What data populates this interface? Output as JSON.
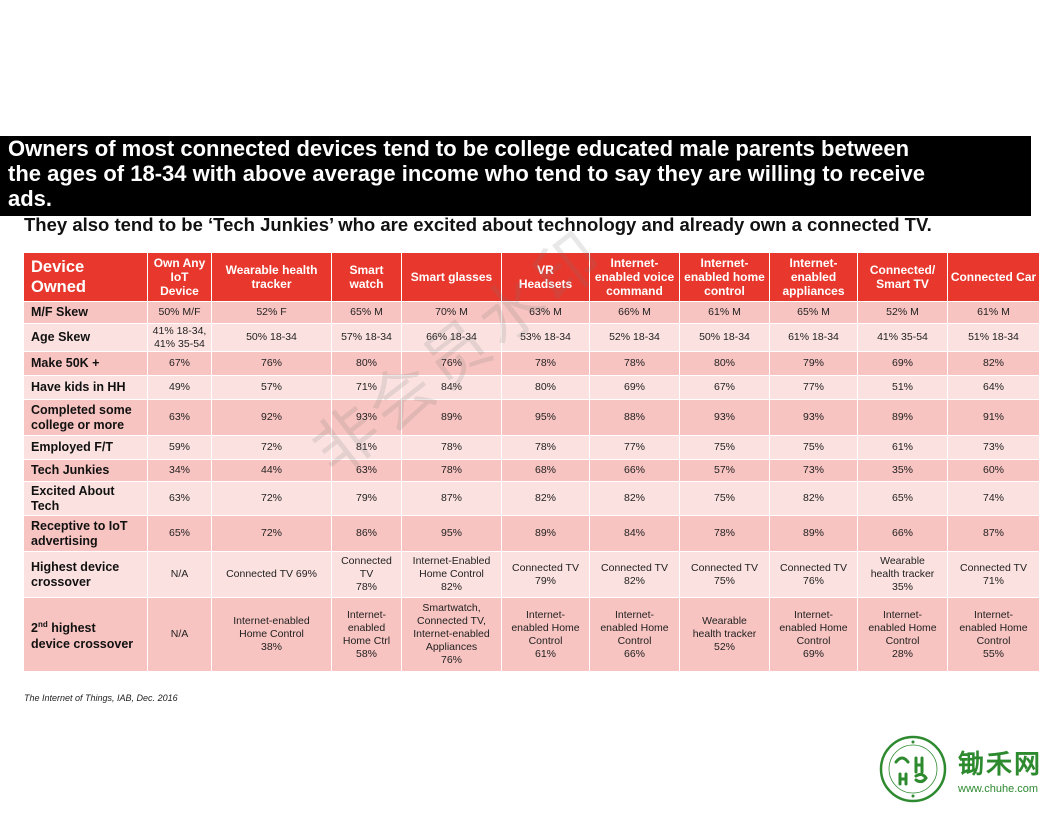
{
  "headline": "Owners  of most connected devices tend to be college educated male parents between\nthe ages of 18-34 with above average income who tend to say they are willing to receive\nads.",
  "subheadline": "They also tend to be ‘Tech Junkies’ who are excited about technology and already own a connected TV.",
  "table": {
    "corner": "Device\nOwned",
    "columns": [
      "Own Any\nIoT Device",
      "Wearable health\ntracker",
      "Smart\nwatch",
      "Smart glasses",
      "VR\nHeadsets",
      "Internet-\nenabled voice\ncommand",
      "Internet-\nenabled home\ncontrol",
      "Internet-\nenabled\nappliances",
      "Connected/\nSmart TV",
      "Connected Car"
    ],
    "rows": [
      {
        "label": "M/F Skew",
        "values": [
          "50% M/F",
          "52% F",
          "65% M",
          "70% M",
          "63% M",
          "66% M",
          "61% M",
          "65% M",
          "52% M",
          "61% M"
        ]
      },
      {
        "label": "Age Skew",
        "values": [
          "41% 18-34,\n41% 35-54",
          "50% 18-34",
          "57% 18-34",
          "66% 18-34",
          "53% 18-34",
          "52% 18-34",
          "50% 18-34",
          "61% 18-34",
          "41% 35-54",
          "51% 18-34"
        ]
      },
      {
        "label": "Make 50K +",
        "values": [
          "67%",
          "76%",
          "80%",
          "76%",
          "78%",
          "78%",
          "80%",
          "79%",
          "69%",
          "82%"
        ]
      },
      {
        "label": "Have kids in HH",
        "values": [
          "49%",
          "57%",
          "71%",
          "84%",
          "80%",
          "69%",
          "67%",
          "77%",
          "51%",
          "64%"
        ]
      },
      {
        "label": "Completed some\ncollege or more",
        "values": [
          "63%",
          "92%",
          "93%",
          "89%",
          "95%",
          "88%",
          "93%",
          "93%",
          "89%",
          "91%"
        ]
      },
      {
        "label": "Employed F/T",
        "values": [
          "59%",
          "72%",
          "81%",
          "78%",
          "78%",
          "77%",
          "75%",
          "75%",
          "61%",
          "73%"
        ]
      },
      {
        "label": "Tech Junkies",
        "values": [
          "34%",
          "44%",
          "63%",
          "78%",
          "68%",
          "66%",
          "57%",
          "73%",
          "35%",
          "60%"
        ]
      },
      {
        "label": "Excited About\nTech",
        "values": [
          "63%",
          "72%",
          "79%",
          "87%",
          "82%",
          "82%",
          "75%",
          "82%",
          "65%",
          "74%"
        ]
      },
      {
        "label": "Receptive to IoT\nadvertising",
        "values": [
          "65%",
          "72%",
          "86%",
          "95%",
          "89%",
          "84%",
          "78%",
          "89%",
          "66%",
          "87%"
        ]
      },
      {
        "label": "Highest device\ncrossover",
        "values": [
          "N/A",
          "Connected TV 69%",
          "Connected\nTV\n78%",
          "Internet-Enabled\nHome Control\n82%",
          "Connected TV\n79%",
          "Connected TV\n82%",
          "Connected TV\n75%",
          "Connected TV\n76%",
          "Wearable\nhealth tracker\n35%",
          "Connected TV\n71%"
        ]
      }
    ],
    "last_row": {
      "label_main": "2",
      "label_sup": "nd",
      "label_rest": " highest\ndevice crossover",
      "values": [
        "N/A",
        "Internet-enabled\nHome Control\n38%",
        "Internet-\nenabled\nHome Ctrl\n58%",
        "Smartwatch,\nConnected TV,\nInternet-enabled\nAppliances\n76%",
        "Internet-\nenabled Home\nControl\n61%",
        "Internet-\nenabled Home\nControl\n66%",
        "Wearable\nhealth tracker\n52%",
        "Internet-\nenabled Home\nControl\n69%",
        "Internet-\nenabled Home\nControl\n28%",
        "Internet-\nenabled Home\nControl\n55%"
      ]
    }
  },
  "source": "The Internet of Things, IAB, Dec. 2016",
  "watermark": "非会员水印",
  "logo": {
    "name_cn": "锄禾网",
    "url": "www.chuhe.com",
    "ring_text": "CHUHE MEANS ORGANIC",
    "since": "SINCE 2016",
    "mark": "CHU HE"
  },
  "colors": {
    "header_red": "#e8382d",
    "row_dark": "#f7c4c1",
    "row_light": "#fbe2e0",
    "logo_green": "#2d8a2f"
  }
}
